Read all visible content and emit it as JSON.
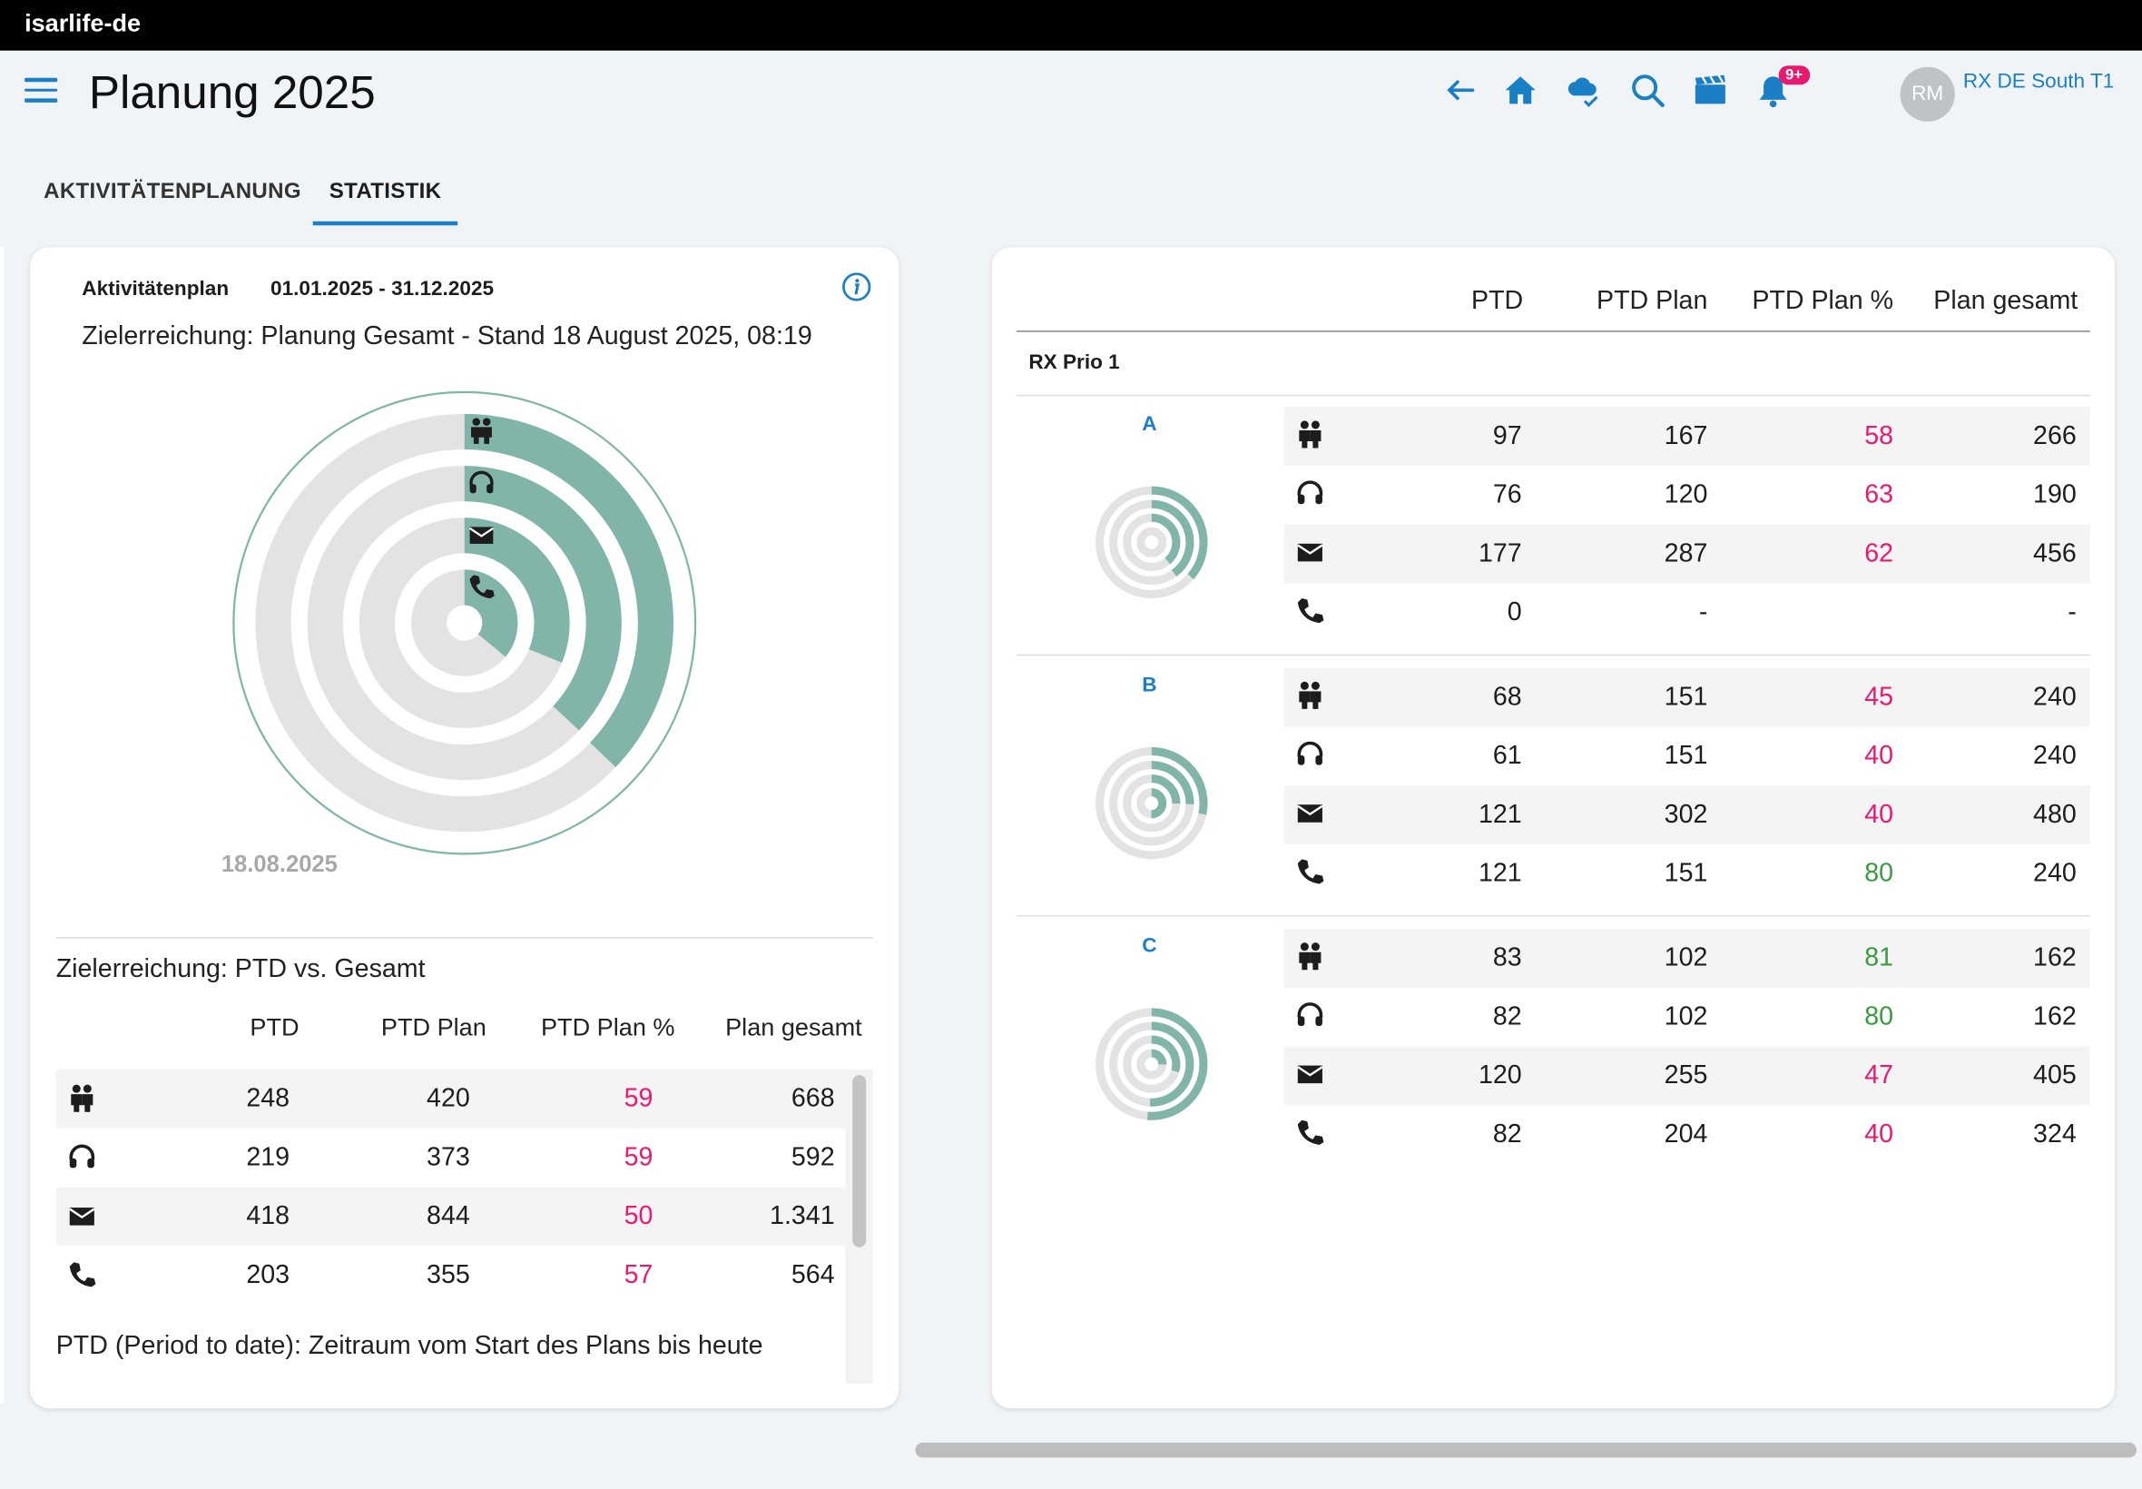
{
  "app": {
    "name": "isarlife-de"
  },
  "header": {
    "title": "Planung 2025",
    "avatar_initials": "RM",
    "user_name": "RX DE South T1",
    "notification_badge": "9+"
  },
  "tabs": [
    {
      "label": "AKTIVITÄTENPLANUNG"
    },
    {
      "label": "STATISTIK"
    }
  ],
  "left_card": {
    "plan_label": "Aktivitätenplan",
    "plan_range": "01.01.2025 - 31.12.2025",
    "chart_title": "Zielerreichung: Planung Gesamt - Stand 18 August 2025, 08:19",
    "chart_date": "18.08.2025",
    "table_title": "Zielerreichung: PTD vs. Gesamt",
    "columns": [
      "PTD",
      "PTD Plan",
      "PTD Plan %",
      "Plan gesamt"
    ],
    "rows": [
      {
        "icon": "people-icon",
        "ptd": "248",
        "ptd_plan": "420",
        "pct": "59",
        "total": "668"
      },
      {
        "icon": "headset-icon",
        "ptd": "219",
        "ptd_plan": "373",
        "pct": "59",
        "total": "592"
      },
      {
        "icon": "mail-icon",
        "ptd": "418",
        "ptd_plan": "844",
        "pct": "50",
        "total": "1.341"
      },
      {
        "icon": "phone-icon",
        "ptd": "203",
        "ptd_plan": "355",
        "pct": "57",
        "total": "564"
      }
    ],
    "footnote": "PTD (Period to date): Zeitraum vom Start des Plans bis heute"
  },
  "right_card": {
    "columns": [
      "PTD",
      "PTD Plan",
      "PTD Plan %",
      "Plan gesamt"
    ],
    "group_label": "RX Prio 1",
    "segments": [
      {
        "label": "A",
        "rows": [
          {
            "icon": "people-icon",
            "ptd": "97",
            "ptd_plan": "167",
            "pct": "58",
            "pct_color": "pink",
            "total": "266"
          },
          {
            "icon": "headset-icon",
            "ptd": "76",
            "ptd_plan": "120",
            "pct": "63",
            "pct_color": "pink",
            "total": "190"
          },
          {
            "icon": "mail-icon",
            "ptd": "177",
            "ptd_plan": "287",
            "pct": "62",
            "pct_color": "pink",
            "total": "456"
          },
          {
            "icon": "phone-icon",
            "ptd": "0",
            "ptd_plan": "-",
            "pct": "",
            "pct_color": "pink",
            "total": "-"
          }
        ]
      },
      {
        "label": "B",
        "rows": [
          {
            "icon": "people-icon",
            "ptd": "68",
            "ptd_plan": "151",
            "pct": "45",
            "pct_color": "pink",
            "total": "240"
          },
          {
            "icon": "headset-icon",
            "ptd": "61",
            "ptd_plan": "151",
            "pct": "40",
            "pct_color": "pink",
            "total": "240"
          },
          {
            "icon": "mail-icon",
            "ptd": "121",
            "ptd_plan": "302",
            "pct": "40",
            "pct_color": "pink",
            "total": "480"
          },
          {
            "icon": "phone-icon",
            "ptd": "121",
            "ptd_plan": "151",
            "pct": "80",
            "pct_color": "green",
            "total": "240"
          }
        ]
      },
      {
        "label": "C",
        "rows": [
          {
            "icon": "people-icon",
            "ptd": "83",
            "ptd_plan": "102",
            "pct": "81",
            "pct_color": "green",
            "total": "162"
          },
          {
            "icon": "headset-icon",
            "ptd": "82",
            "ptd_plan": "102",
            "pct": "80",
            "pct_color": "green",
            "total": "162"
          },
          {
            "icon": "mail-icon",
            "ptd": "120",
            "ptd_plan": "255",
            "pct": "47",
            "pct_color": "pink",
            "total": "405"
          },
          {
            "icon": "phone-icon",
            "ptd": "82",
            "ptd_plan": "204",
            "pct": "40",
            "pct_color": "pink",
            "total": "324"
          }
        ]
      }
    ]
  },
  "colors": {
    "accent": "#1a7fc4",
    "ring_fill": "#82b5aa",
    "ring_track": "#e3e3e3",
    "pink": "#e8196e",
    "green": "#3a9a3f"
  }
}
